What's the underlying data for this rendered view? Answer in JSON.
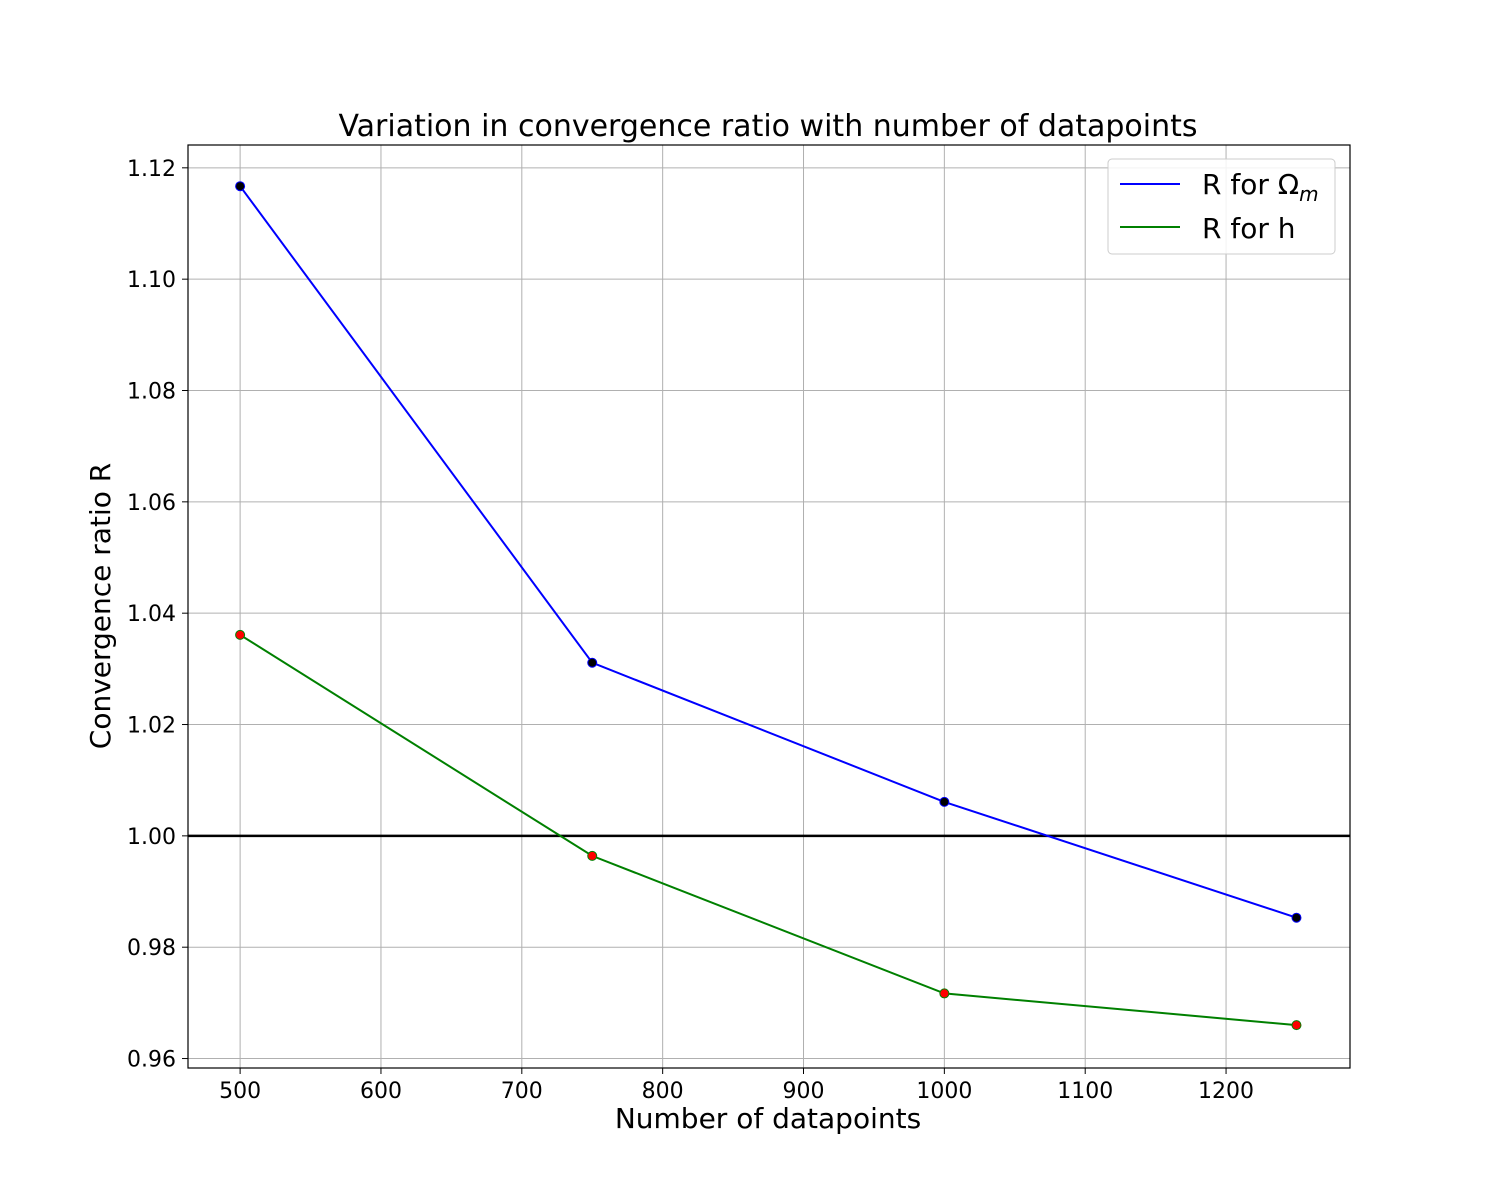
{
  "chart_data": {
    "type": "line",
    "title": "Variation in convergence ratio with number of datapoints",
    "xlabel": "Number of datapoints",
    "ylabel": "Convergence ratio R",
    "x": [
      500,
      750,
      1000,
      1250
    ],
    "xlim": [
      463,
      1288
    ],
    "ylim": [
      0.9583,
      1.1241
    ],
    "xticks": [
      "500",
      "600",
      "700",
      "800",
      "900",
      "1000",
      "1100",
      "1200"
    ],
    "yticks": [
      "0.96",
      "0.98",
      "1.00",
      "1.02",
      "1.04",
      "1.06",
      "1.08",
      "1.10",
      "1.12"
    ],
    "grid": true,
    "legend_position": "top-right",
    "reference_line": {
      "y": 1.0,
      "color": "#000000"
    },
    "series": [
      {
        "name": "R for Ω",
        "name_subscript": "m",
        "values": [
          1.1167,
          1.0311,
          1.0061,
          0.9853
        ],
        "line_color": "#0000ff",
        "marker_color": "#000000"
      },
      {
        "name": "R for h",
        "values": [
          1.0361,
          0.9964,
          0.9717,
          0.966
        ],
        "line_color": "#008000",
        "marker_color": "#ff0000"
      }
    ]
  }
}
